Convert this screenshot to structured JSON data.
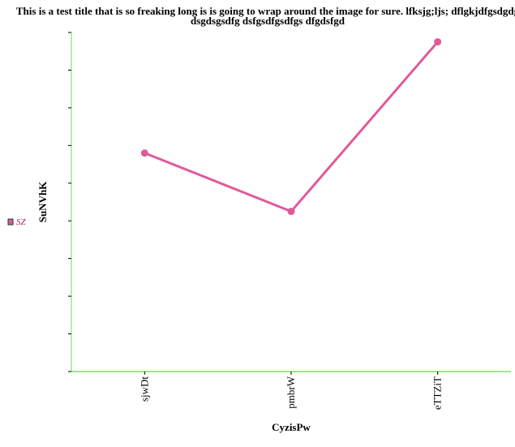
{
  "chart_data": {
    "type": "line",
    "title_lines": [
      "This is a test title that is so freaking long is is going to wrap around the image for sure. lfksjg;ljs; dflgkjdfgsdgdg",
      "dsgdsgsdfg dsfgsdfgsdfgs dfgdsfgd"
    ],
    "xlabel": "CyzisPw",
    "ylabel": "SuNVhK",
    "categories": [
      "sjwDt",
      "pmbrW",
      "eTTZiT"
    ],
    "series": [
      {
        "name": "SZ",
        "values": [
          5.8,
          4.25,
          8.75
        ],
        "color": "#e05a9b"
      }
    ],
    "ylim": [
      0,
      9
    ],
    "y_tick_count": 10,
    "y_tick_labels_shown": false,
    "grid": false,
    "legend": "left",
    "axis_color": "#90ee90"
  }
}
